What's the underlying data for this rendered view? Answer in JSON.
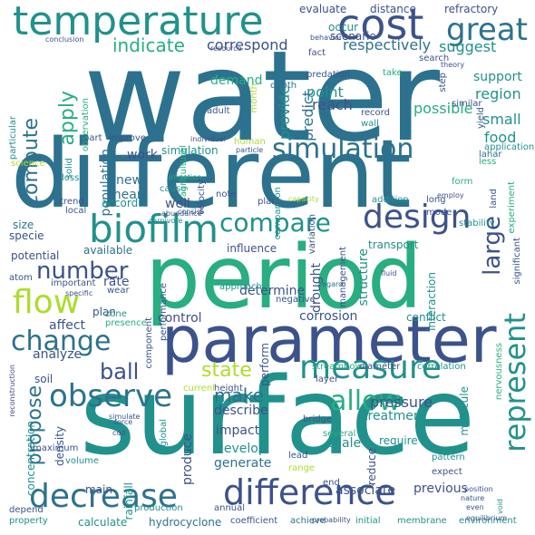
{
  "palette": {
    "background": "#ffffff",
    "purple": "#472d7b",
    "indigo": "#3b528b",
    "blue": "#2c728e",
    "teal": "#21918c",
    "green": "#28ae80",
    "lime": "#5ec962",
    "yellow": "#addc30"
  },
  "words": [
    "water",
    "different",
    "surface",
    "period",
    "parameter",
    "temperature",
    "cost",
    "great",
    "biofilm",
    "simulation",
    "compare",
    "flow",
    "design",
    "difference",
    "decrease",
    "represent",
    "measure",
    "change",
    "observe",
    "state",
    "propose",
    "allow",
    "ball",
    "number",
    "large",
    "apply",
    "compute",
    "indicate",
    "correspond",
    "respectively",
    "suggest",
    "region",
    "food",
    "small",
    "possible",
    "support",
    "point",
    "reach",
    "demand",
    "provide",
    "predict",
    "work",
    "new",
    "mean",
    "population",
    "well",
    "accord",
    "drought",
    "specie",
    "size",
    "potential",
    "available",
    "influence",
    "transport",
    "stability",
    "significant",
    "form",
    "experiment",
    "control",
    "determine",
    "corrosion",
    "structure",
    "interaction",
    "conflict",
    "affect",
    "rate",
    "plan",
    "analyze",
    "soil",
    "make",
    "pressure",
    "treatment",
    "molecule",
    "density",
    "concentration",
    "impact",
    "develop",
    "produce",
    "describe",
    "generate",
    "scale",
    "reduce",
    "require",
    "associate",
    "previous",
    "main",
    "rainfall",
    "calculate",
    "hydrocyclone",
    "coefficient",
    "achieve",
    "initial",
    "membrane",
    "environment",
    "atom",
    "important",
    "approach",
    "negative",
    "perform",
    "bridge",
    "streamflow",
    "diameter",
    "correlation",
    "nervousness",
    "layer",
    "several",
    "height",
    "current",
    "global",
    "maximum",
    "lead",
    "range",
    "end",
    "pattern",
    "expect",
    "production",
    "annual",
    "volume",
    "depend",
    "property",
    "evaluate",
    "distance",
    "refractory",
    "occur",
    "scenario",
    "fact",
    "search",
    "predation",
    "take",
    "wall",
    "record",
    "step",
    "similar",
    "land",
    "less",
    "yield",
    "application",
    "lahar",
    "long",
    "mode",
    "addition",
    "variation",
    "capacity",
    "plant",
    "comparison",
    "cause",
    "velocity",
    "irrigation",
    "individual",
    "particle",
    "agricultural",
    "human",
    "adult",
    "month",
    "depth",
    "improve",
    "part",
    "observation",
    "particular",
    "science",
    "loss",
    "solid",
    "trend",
    "local",
    "zone",
    "wear",
    "presence",
    "component",
    "performance",
    "note",
    "consist",
    "abundance",
    "carnivore",
    "specific",
    "regard",
    "fluid",
    "management",
    "even",
    "nature",
    "equilibrium",
    "void",
    "position",
    "probability",
    "simulate",
    "cod",
    "reconstruction",
    "force",
    "behavior",
    "resource",
    "conclusion",
    "employ",
    "theory",
    "simulation"
  ]
}
